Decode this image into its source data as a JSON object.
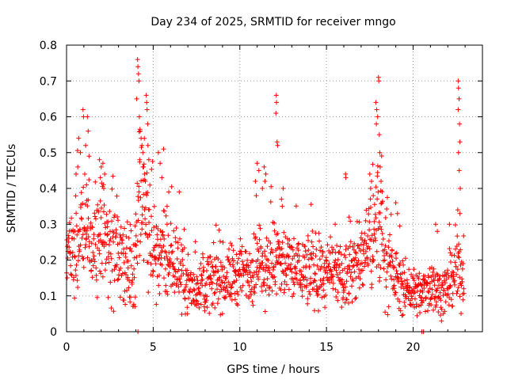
{
  "chart_data": {
    "type": "scatter",
    "title": "Day 234 of 2025, SRMTID for receiver mngo",
    "xlabel": "GPS time / hours",
    "ylabel": "SRMTID / TECUs",
    "xlim": [
      0,
      24
    ],
    "ylim": [
      0,
      0.8
    ],
    "grid": true,
    "marker": "+",
    "color": "#ff0000",
    "x_ticks": [
      0,
      5,
      10,
      15,
      20
    ],
    "x_tick_labels": [
      "0",
      "5",
      "10",
      "15",
      "20"
    ],
    "y_ticks": [
      0,
      0.1,
      0.2,
      0.3,
      0.4,
      0.5,
      0.6,
      0.7,
      0.8
    ],
    "y_tick_labels": [
      "0",
      "0.1",
      "0.2",
      "0.3",
      "0.4",
      "0.5",
      "0.6",
      "0.7",
      "0.8"
    ],
    "trend": {
      "x": [
        0,
        0.5,
        1,
        1.5,
        2,
        2.5,
        3,
        3.5,
        3.8,
        4,
        4.2,
        4.5,
        5,
        5.5,
        6,
        6.5,
        7,
        7.5,
        8,
        9,
        10,
        11,
        12,
        13,
        14,
        15,
        16,
        17,
        17.5,
        18,
        18.5,
        19,
        19.5,
        20,
        20.5,
        21,
        21.5,
        22,
        22.5,
        23
      ],
      "y": [
        0.22,
        0.24,
        0.27,
        0.25,
        0.28,
        0.24,
        0.21,
        0.19,
        0.15,
        0.25,
        0.38,
        0.33,
        0.24,
        0.21,
        0.2,
        0.18,
        0.13,
        0.12,
        0.14,
        0.15,
        0.16,
        0.18,
        0.2,
        0.18,
        0.17,
        0.16,
        0.15,
        0.2,
        0.26,
        0.3,
        0.2,
        0.15,
        0.12,
        0.11,
        0.1,
        0.14,
        0.11,
        0.12,
        0.16,
        0.15
      ]
    },
    "spikes": [
      {
        "x": 0.95,
        "y": 0.62
      },
      {
        "x": 0.98,
        "y": 0.6
      },
      {
        "x": 1.2,
        "y": 0.6
      },
      {
        "x": 1.25,
        "y": 0.56
      },
      {
        "x": 0.7,
        "y": 0.54
      },
      {
        "x": 0.8,
        "y": 0.5
      },
      {
        "x": 1.1,
        "y": 0.52
      },
      {
        "x": 1.3,
        "y": 0.49
      },
      {
        "x": 0.55,
        "y": 0.44
      },
      {
        "x": 0.65,
        "y": 0.46
      },
      {
        "x": 1.05,
        "y": 0.44
      },
      {
        "x": 1.15,
        "y": 0.41
      },
      {
        "x": 1.9,
        "y": 0.48
      },
      {
        "x": 2.0,
        "y": 0.46
      },
      {
        "x": 2.1,
        "y": 0.47
      },
      {
        "x": 2.2,
        "y": 0.44
      },
      {
        "x": 1.95,
        "y": 0.43
      },
      {
        "x": 2.15,
        "y": 0.4
      },
      {
        "x": 4.1,
        "y": 0.76
      },
      {
        "x": 4.12,
        "y": 0.74
      },
      {
        "x": 4.15,
        "y": 0.72
      },
      {
        "x": 4.18,
        "y": 0.7
      },
      {
        "x": 4.05,
        "y": 0.65
      },
      {
        "x": 4.2,
        "y": 0.6
      },
      {
        "x": 4.25,
        "y": 0.56
      },
      {
        "x": 4.3,
        "y": 0.54
      },
      {
        "x": 4.35,
        "y": 0.52
      },
      {
        "x": 4.4,
        "y": 0.5
      },
      {
        "x": 4.22,
        "y": 0.48
      },
      {
        "x": 4.45,
        "y": 0.46
      },
      {
        "x": 4.6,
        "y": 0.66
      },
      {
        "x": 4.62,
        "y": 0.64
      },
      {
        "x": 4.65,
        "y": 0.62
      },
      {
        "x": 4.68,
        "y": 0.58
      },
      {
        "x": 4.5,
        "y": 0.44
      },
      {
        "x": 4.55,
        "y": 0.42
      },
      {
        "x": 4.7,
        "y": 0.52
      },
      {
        "x": 4.75,
        "y": 0.48
      },
      {
        "x": 5.3,
        "y": 0.5
      },
      {
        "x": 5.4,
        "y": 0.47
      },
      {
        "x": 5.6,
        "y": 0.51
      },
      {
        "x": 5.5,
        "y": 0.43
      },
      {
        "x": 5.9,
        "y": 0.39
      },
      {
        "x": 5.8,
        "y": 0.35
      },
      {
        "x": 3.95,
        "y": 0.07
      },
      {
        "x": 4.12,
        "y": 0.0
      },
      {
        "x": 11.0,
        "y": 0.47
      },
      {
        "x": 11.1,
        "y": 0.45
      },
      {
        "x": 10.9,
        "y": 0.42
      },
      {
        "x": 11.4,
        "y": 0.46
      },
      {
        "x": 11.5,
        "y": 0.44
      },
      {
        "x": 11.45,
        "y": 0.42
      },
      {
        "x": 11.3,
        "y": 0.4
      },
      {
        "x": 10.95,
        "y": 0.38
      },
      {
        "x": 12.1,
        "y": 0.66
      },
      {
        "x": 12.12,
        "y": 0.64
      },
      {
        "x": 12.08,
        "y": 0.61
      },
      {
        "x": 12.15,
        "y": 0.53
      },
      {
        "x": 12.18,
        "y": 0.52
      },
      {
        "x": 12.5,
        "y": 0.4
      },
      {
        "x": 12.4,
        "y": 0.37
      },
      {
        "x": 12.45,
        "y": 0.35
      },
      {
        "x": 16.1,
        "y": 0.44
      },
      {
        "x": 16.12,
        "y": 0.43
      },
      {
        "x": 16.3,
        "y": 0.32
      },
      {
        "x": 15.5,
        "y": 0.3
      },
      {
        "x": 17.5,
        "y": 0.44
      },
      {
        "x": 17.6,
        "y": 0.42
      },
      {
        "x": 17.55,
        "y": 0.4
      },
      {
        "x": 17.7,
        "y": 0.38
      },
      {
        "x": 17.85,
        "y": 0.64
      },
      {
        "x": 17.9,
        "y": 0.62
      },
      {
        "x": 17.95,
        "y": 0.6
      },
      {
        "x": 17.88,
        "y": 0.58
      },
      {
        "x": 18.0,
        "y": 0.71
      },
      {
        "x": 18.02,
        "y": 0.7
      },
      {
        "x": 18.05,
        "y": 0.55
      },
      {
        "x": 18.08,
        "y": 0.5
      },
      {
        "x": 18.1,
        "y": 0.46
      },
      {
        "x": 18.15,
        "y": 0.42
      },
      {
        "x": 17.98,
        "y": 0.39
      },
      {
        "x": 18.2,
        "y": 0.36
      },
      {
        "x": 19.0,
        "y": 0.36
      },
      {
        "x": 19.1,
        "y": 0.33
      },
      {
        "x": 20.5,
        "y": 0.0
      },
      {
        "x": 20.6,
        "y": 0.0
      },
      {
        "x": 21.3,
        "y": 0.3
      },
      {
        "x": 21.4,
        "y": 0.28
      },
      {
        "x": 22.1,
        "y": 0.3
      },
      {
        "x": 22.6,
        "y": 0.7
      },
      {
        "x": 22.62,
        "y": 0.68
      },
      {
        "x": 22.65,
        "y": 0.65
      },
      {
        "x": 22.6,
        "y": 0.62
      },
      {
        "x": 22.68,
        "y": 0.58
      },
      {
        "x": 22.7,
        "y": 0.53
      },
      {
        "x": 22.62,
        "y": 0.5
      },
      {
        "x": 22.66,
        "y": 0.45
      },
      {
        "x": 22.72,
        "y": 0.4
      },
      {
        "x": 22.58,
        "y": 0.34
      },
      {
        "x": 22.7,
        "y": 0.33
      }
    ],
    "scatter_count": 1500,
    "scatter_step_hours": 0.0153,
    "scatter_noise_fraction": 0.55,
    "scatter_seed": 234
  }
}
